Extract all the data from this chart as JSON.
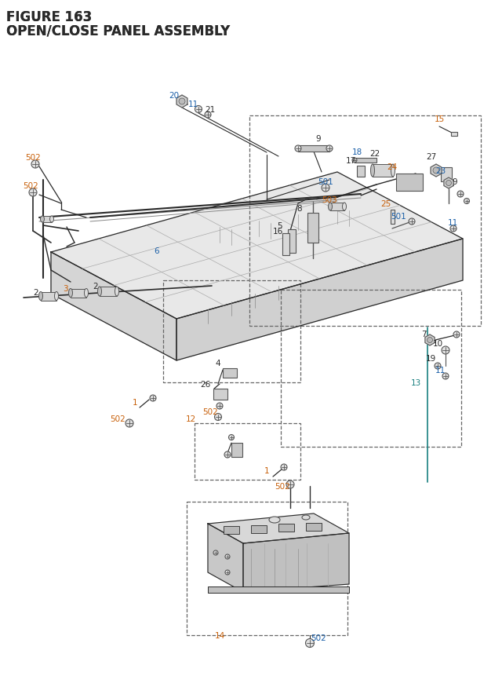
{
  "title_line1": "FIGURE 163",
  "title_line2": "OPEN/CLOSE PANEL ASSEMBLY",
  "bg_color": "#ffffff",
  "blue": "#1a5fa8",
  "orange": "#c8600a",
  "teal": "#1a8080",
  "dark": "#2a2a2a",
  "gray": "#555555",
  "light_gray": "#aaaaaa",
  "dashed": "#666666"
}
